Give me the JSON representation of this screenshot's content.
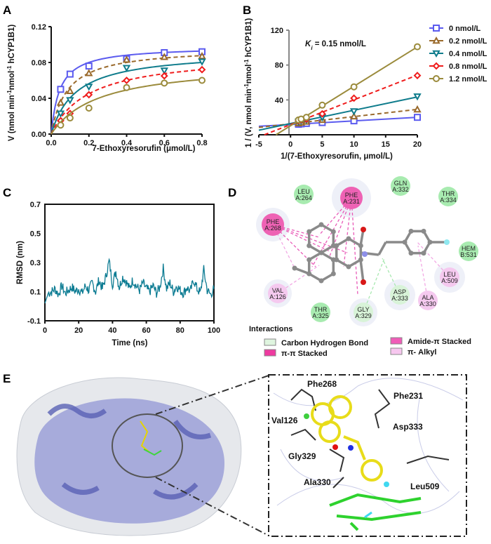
{
  "panel_labels": {
    "a": "A",
    "b": "B",
    "c": "C",
    "d": "D",
    "e": "E"
  },
  "colors": {
    "0": "#5b5bef",
    "0.2": "#9a6a2c",
    "0.4": "#0f7c8c",
    "0.8": "#ef1c1c",
    "1.2": "#9b8b3c",
    "rmsd": "#0d7c93"
  },
  "chart_data": [
    {
      "type": "line",
      "panel": "A",
      "xlabel": "7-Ethoxyresorufin (μmol/L)",
      "ylabel": "V (nmol min-1nmol-1 hCYP1B1)",
      "ylabel_parts": {
        "main": "V (nmol min",
        "sup1": "-1",
        "mid": "nmol",
        "sup2": "-1",
        "end": " hCYP1B1)"
      },
      "xlim": [
        0,
        0.8
      ],
      "ylim": [
        0,
        0.12
      ],
      "xticks": [
        "0.0",
        "0.2",
        "0.4",
        "0.6",
        "0.8"
      ],
      "yticks": [
        "0.00",
        "0.04",
        "0.08",
        "0.12"
      ],
      "x": [
        0.05,
        0.1,
        0.2,
        0.4,
        0.6,
        0.8
      ],
      "series": [
        {
          "name": "0 nmol/L",
          "marker": "square",
          "dash": false,
          "values": [
            0.05,
            0.067,
            0.076,
            0.084,
            0.091,
            0.092
          ]
        },
        {
          "name": "0.2 nmol/L",
          "marker": "triangle-up",
          "dash": true,
          "values": [
            0.035,
            0.048,
            0.068,
            0.083,
            0.086,
            0.087
          ]
        },
        {
          "name": "0.4 nmol/L",
          "marker": "triangle-down",
          "dash": false,
          "values": [
            0.023,
            0.038,
            0.053,
            0.074,
            0.071,
            0.081
          ]
        },
        {
          "name": "0.8 nmol/L",
          "marker": "diamond",
          "dash": true,
          "values": [
            0.015,
            0.023,
            0.044,
            0.06,
            0.065,
            0.072
          ]
        },
        {
          "name": "1.2 nmol/L",
          "marker": "circle",
          "dash": false,
          "values": [
            0.01,
            0.018,
            0.029,
            0.052,
            0.057,
            0.06
          ]
        }
      ]
    },
    {
      "type": "line",
      "panel": "B",
      "xlabel": "1/(7-Ethoxyresorufin, μmol/L)",
      "ylabel": "1 / (V, nmol min-1nmol-1 hCYP1B1)",
      "ylabel_parts": {
        "main": "1 / (V, nmol min",
        "sup1": "-1",
        "mid": "nmol",
        "sup2": "-1",
        "end": " hCYP1B1)"
      },
      "annotation": {
        "k": "K",
        "sub": "i",
        "rest": " = 0.15 nmol/L"
      },
      "xlim": [
        -5,
        20
      ],
      "ylim": [
        0,
        120
      ],
      "xticks": [
        "-5",
        "0",
        "5",
        "10",
        "15",
        "20"
      ],
      "yticks": [
        "40",
        "80",
        "120"
      ],
      "legend": "top-right",
      "x": [
        1.25,
        1.67,
        2.5,
        5,
        10,
        20
      ],
      "series": [
        {
          "name": "0 nmol/L",
          "marker": "square",
          "dash": false,
          "values": [
            12,
            12.5,
            13,
            14,
            16,
            20
          ]
        },
        {
          "name": "0.2 nmol/L",
          "marker": "triangle-up",
          "dash": true,
          "values": [
            13,
            14,
            15,
            17,
            21,
            29
          ]
        },
        {
          "name": "0.4 nmol/L",
          "marker": "triangle-down",
          "dash": false,
          "values": [
            15,
            16,
            17,
            20,
            27,
            44
          ]
        },
        {
          "name": "0.8 nmol/L",
          "marker": "diamond",
          "dash": true,
          "values": [
            16,
            17,
            18,
            24,
            42,
            68
          ]
        },
        {
          "name": "1.2 nmol/L",
          "marker": "circle",
          "dash": false,
          "values": [
            17,
            18,
            20,
            34,
            55,
            101
          ]
        }
      ]
    },
    {
      "type": "line",
      "panel": "C",
      "xlabel": "Time (ns)",
      "ylabel": "RMSD (nm)",
      "xlim": [
        0,
        100
      ],
      "ylim": [
        -0.1,
        0.7
      ],
      "xticks": [
        "0",
        "20",
        "40",
        "60",
        "80",
        "100"
      ],
      "yticks": [
        "-0.1",
        "0.1",
        "0.3",
        "0.5",
        "0.7"
      ],
      "x_step": 2,
      "values": [
        0.02,
        0.09,
        0.1,
        0.12,
        0.08,
        0.14,
        0.09,
        0.11,
        0.13,
        0.1,
        0.12,
        0.09,
        0.14,
        0.11,
        0.16,
        0.1,
        0.18,
        0.12,
        0.2,
        0.31,
        0.15,
        0.24,
        0.13,
        0.2,
        0.17,
        0.12,
        0.18,
        0.14,
        0.11,
        0.16,
        0.12,
        0.1,
        0.14,
        0.09,
        0.13,
        0.26,
        0.12,
        0.16,
        0.1,
        0.14,
        0.11,
        0.09,
        0.13,
        0.1,
        0.18,
        0.12,
        0.09,
        0.25,
        0.11,
        0.08,
        0.12
      ]
    }
  ],
  "interaction_diagram": {
    "residues": [
      {
        "name": "LEU",
        "id": "A:264",
        "type": "vdw"
      },
      {
        "name": "PHE",
        "id": "A:231",
        "type": "pi-pi"
      },
      {
        "name": "GLN",
        "id": "A:332",
        "type": "vdw"
      },
      {
        "name": "THR",
        "id": "A:334",
        "type": "vdw"
      },
      {
        "name": "PHE",
        "id": "A:268",
        "type": "pi-pi"
      },
      {
        "name": "HEM",
        "id": "B:531",
        "type": "vdw"
      },
      {
        "name": "LEU",
        "id": "A:509",
        "type": "pi-alkyl"
      },
      {
        "name": "VAL",
        "id": "A:126",
        "type": "pi-alkyl"
      },
      {
        "name": "ASP",
        "id": "A:333",
        "type": "ch-bond"
      },
      {
        "name": "ALA",
        "id": "A:330",
        "type": "pi-alkyl"
      },
      {
        "name": "THR",
        "id": "A:325",
        "type": "vdw"
      },
      {
        "name": "GLY",
        "id": "A:329",
        "type": "ch-bond"
      }
    ],
    "legend_title": "Interactions",
    "legend": [
      {
        "label": "Carbon Hydrogen Bond",
        "color": "#dff5df"
      },
      {
        "label": "π-π Stacked",
        "color": "#ee3aa0"
      },
      {
        "label": "Amide-π Stacked",
        "color": "#f05cb8"
      },
      {
        "label": "π- Alkyl",
        "color": "#f7c7ef"
      }
    ]
  },
  "structure_view": {
    "residue_labels": [
      "Phe268",
      "Phe231",
      "Val126",
      "Asp333",
      "Gly329",
      "Ala330",
      "Leu509"
    ]
  }
}
